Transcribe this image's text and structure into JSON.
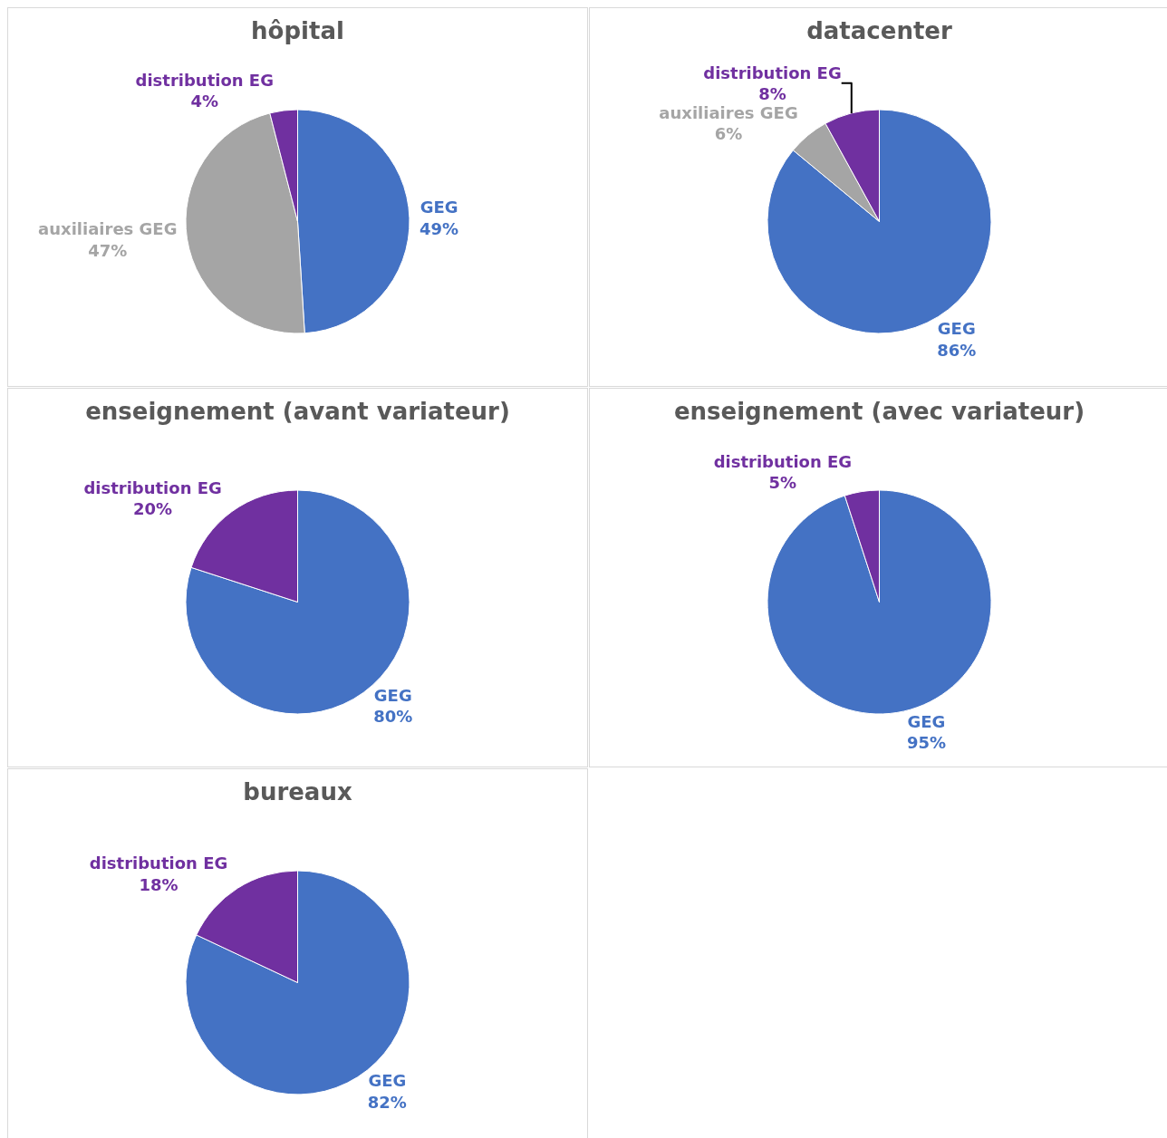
{
  "chart_data": [
    {
      "type": "pie",
      "title": "hôpital",
      "categories": [
        "GEG",
        "auxiliaires GEG",
        "distribution EG"
      ],
      "values": [
        49,
        47,
        4
      ],
      "colors": [
        "#4472c4",
        "#a5a5a5",
        "#7030a0"
      ],
      "value_labels": [
        "49%",
        "47%",
        "4%"
      ]
    },
    {
      "type": "pie",
      "title": "datacenter",
      "categories": [
        "GEG",
        "auxiliaires GEG",
        "distribution EG"
      ],
      "values": [
        86,
        6,
        8
      ],
      "colors": [
        "#4472c4",
        "#a5a5a5",
        "#7030a0"
      ],
      "value_labels": [
        "86%",
        "6%",
        "8%"
      ]
    },
    {
      "type": "pie",
      "title": "enseignement (avant variateur)",
      "categories": [
        "GEG",
        "distribution EG"
      ],
      "values": [
        80,
        20
      ],
      "colors": [
        "#4472c4",
        "#7030a0"
      ],
      "value_labels": [
        "80%",
        "20%"
      ]
    },
    {
      "type": "pie",
      "title": "enseignement (avec variateur)",
      "categories": [
        "GEG",
        "distribution EG"
      ],
      "values": [
        95,
        5
      ],
      "colors": [
        "#4472c4",
        "#7030a0"
      ],
      "value_labels": [
        "95%",
        "5%"
      ]
    },
    {
      "type": "pie",
      "title": "bureaux",
      "categories": [
        "GEG",
        "distribution EG"
      ],
      "values": [
        82,
        18
      ],
      "colors": [
        "#4472c4",
        "#7030a0"
      ],
      "value_labels": [
        "82%",
        "18%"
      ]
    }
  ]
}
